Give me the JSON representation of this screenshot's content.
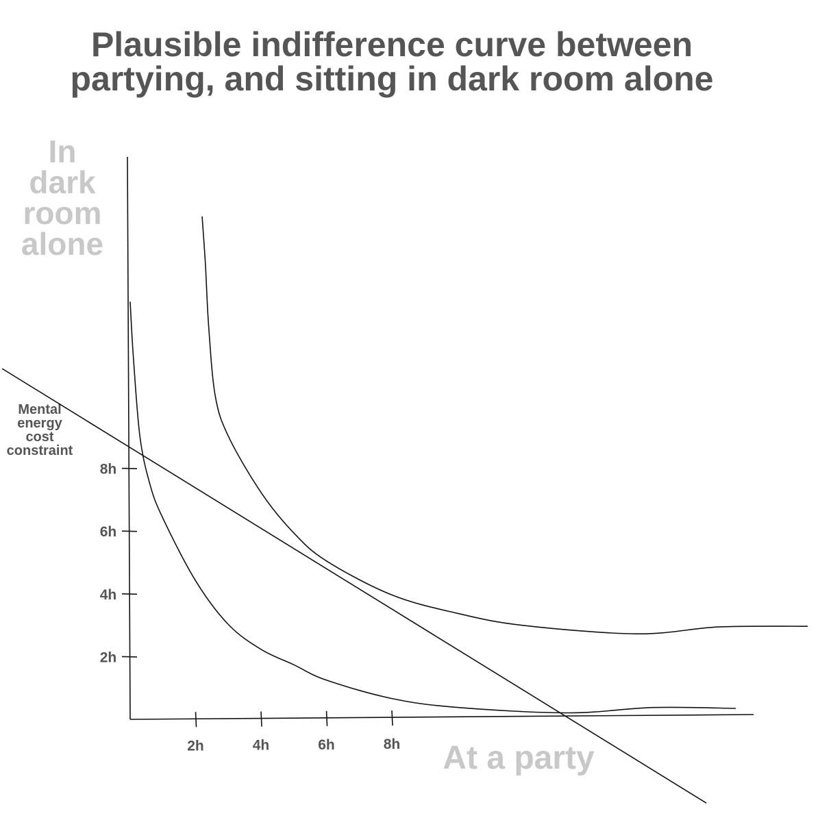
{
  "title": {
    "line1": "Plausible indifference curve between",
    "line2": "partying, and sitting in dark room alone"
  },
  "chart_data": {
    "type": "line",
    "title": "Plausible indifference curve between partying, and sitting in dark room alone",
    "xlabel": "At a party",
    "ylabel_lines": [
      "In",
      "dark",
      "room",
      "alone"
    ],
    "x_ticks": [
      "2h",
      "4h",
      "6h",
      "8h"
    ],
    "y_ticks": [
      "2h",
      "4h",
      "6h",
      "8h"
    ],
    "x_tick_values": [
      2,
      4,
      6,
      8
    ],
    "y_tick_values": [
      2,
      4,
      6,
      8
    ],
    "xlim": [
      0,
      19
    ],
    "ylim": [
      0,
      17
    ],
    "grid": false,
    "series": [
      {
        "role": "lower-indifference-curve",
        "points": [
          [
            0.0,
            13.3
          ],
          [
            0.1,
            11.5
          ],
          [
            0.3,
            9.0
          ],
          [
            0.6,
            7.5
          ],
          [
            1.0,
            6.4
          ],
          [
            2.0,
            4.4
          ],
          [
            3.0,
            3.0
          ],
          [
            4.0,
            2.2
          ],
          [
            5.0,
            1.7
          ],
          [
            6.0,
            1.2
          ],
          [
            8.0,
            0.6
          ],
          [
            10.0,
            0.3
          ],
          [
            13.4,
            0.1
          ],
          [
            16.0,
            0.25
          ],
          [
            18.5,
            0.2
          ]
        ]
      },
      {
        "role": "upper-indifference-curve",
        "points": [
          [
            2.2,
            16.0
          ],
          [
            2.3,
            14.5
          ],
          [
            2.4,
            12.5
          ],
          [
            2.6,
            10.3
          ],
          [
            3.0,
            9.0
          ],
          [
            4.0,
            7.2
          ],
          [
            5.0,
            5.9
          ],
          [
            6.0,
            5.0
          ],
          [
            8.0,
            3.9
          ],
          [
            10.0,
            3.3
          ],
          [
            12.0,
            2.9
          ],
          [
            15.5,
            2.6
          ],
          [
            18.0,
            2.8
          ],
          [
            20.7,
            2.8
          ]
        ]
      },
      {
        "name": "Mental energy cost constraint",
        "role": "budget-line",
        "points": [
          [
            -3.9,
            11.2
          ],
          [
            17.6,
            -2.8
          ]
        ]
      }
    ],
    "annotations": [
      {
        "text": "Mental energy cost constraint",
        "lines": [
          "Mental",
          "energy",
          "cost",
          "constraint"
        ]
      }
    ]
  }
}
